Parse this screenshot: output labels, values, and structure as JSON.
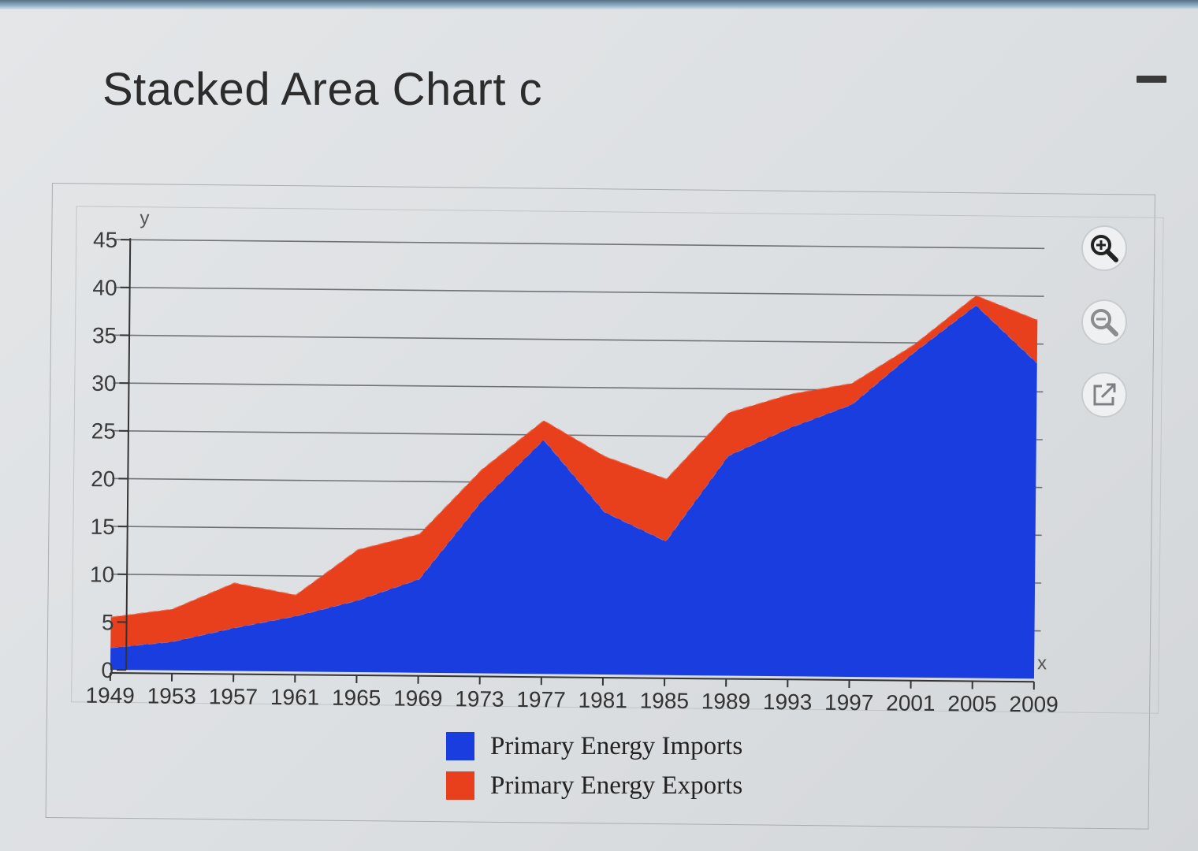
{
  "page": {
    "title": "Stacked Area Chart c"
  },
  "toolbar": {
    "zoom_in_icon": "zoom-in-icon",
    "zoom_out_icon": "zoom-out-icon",
    "open_external_icon": "open-external-icon",
    "minimize_icon": "minimize-icon"
  },
  "colors": {
    "imports": "#1a3de0",
    "exports": "#e8401c",
    "grid": "#6f7378",
    "axis": "#333333"
  },
  "chart_data": {
    "type": "area",
    "stacked": true,
    "title": "",
    "xlabel": "x",
    "ylabel": "y",
    "x_ticks": [
      "1949",
      "1953",
      "1957",
      "1961",
      "1965",
      "1969",
      "1973",
      "1977",
      "1981",
      "1985",
      "1989",
      "1993",
      "1997",
      "2001",
      "2005",
      "2009"
    ],
    "y_ticks": [
      "0",
      "5",
      "10",
      "15",
      "20",
      "25",
      "30",
      "35",
      "40",
      "45"
    ],
    "ylim": [
      0,
      45
    ],
    "xlim": [
      1949,
      2009
    ],
    "grid": true,
    "legend_position": "bottom",
    "x": [
      1949,
      1953,
      1957,
      1961,
      1965,
      1969,
      1973,
      1977,
      1981,
      1985,
      1989,
      1993,
      1997,
      2001,
      2005,
      2009
    ],
    "series": [
      {
        "name": "Primary Energy Imports",
        "values": [
          2.3,
          3.0,
          4.5,
          5.8,
          7.5,
          9.8,
          18.0,
          24.5,
          17.0,
          14.0,
          23.0,
          26.0,
          28.5,
          34.0,
          39.0,
          33.0
        ]
      },
      {
        "name": "Primary Energy Exports",
        "values": [
          3.2,
          3.4,
          4.7,
          2.2,
          5.3,
          4.7,
          3.3,
          2.0,
          5.8,
          6.5,
          4.5,
          3.5,
          2.2,
          0.8,
          1.0,
          4.5
        ]
      }
    ]
  }
}
